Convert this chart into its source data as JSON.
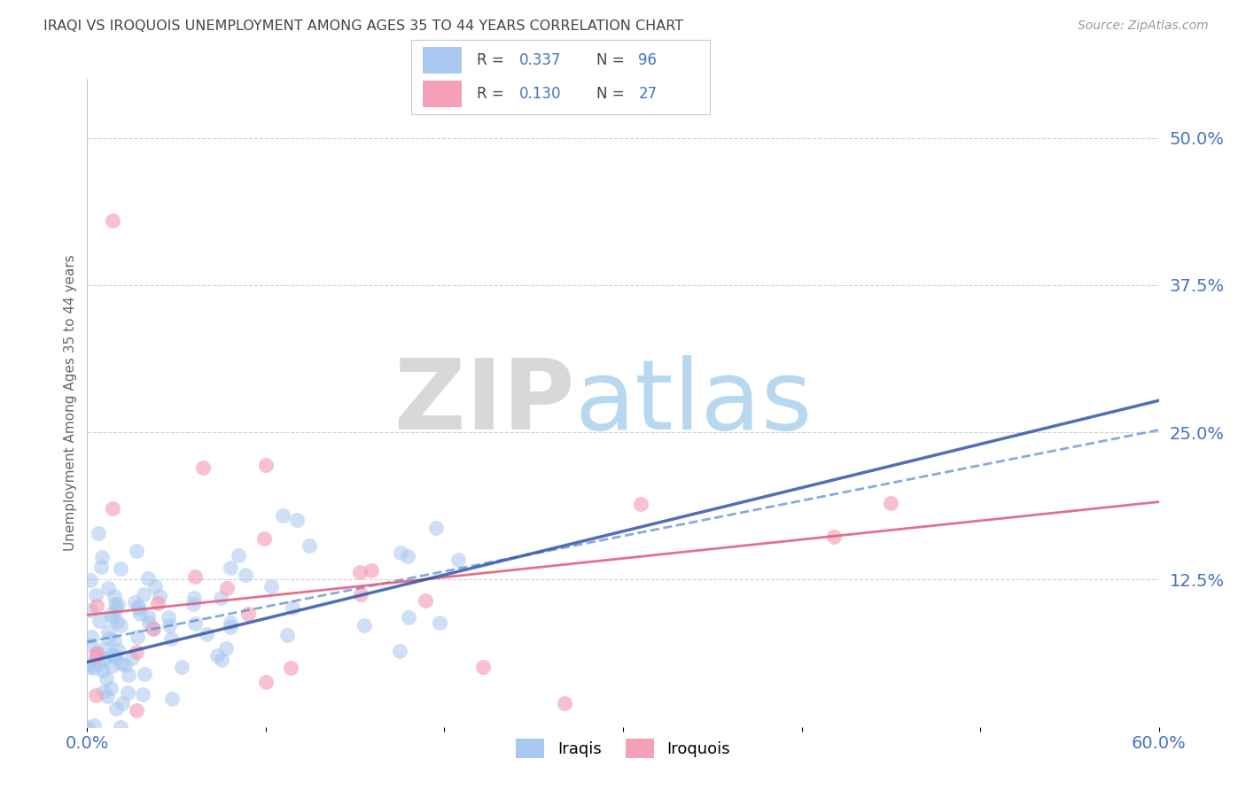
{
  "title": "IRAQI VS IROQUOIS UNEMPLOYMENT AMONG AGES 35 TO 44 YEARS CORRELATION CHART",
  "source": "Source: ZipAtlas.com",
  "ylabel": "Unemployment Among Ages 35 to 44 years",
  "xlim": [
    0.0,
    0.6
  ],
  "ylim": [
    0.0,
    0.55
  ],
  "iraqis_R": 0.337,
  "iraqis_N": 96,
  "iroquois_R": 0.13,
  "iroquois_N": 27,
  "blue_scatter_color": "#a8c8f0",
  "blue_line_color": "#5588cc",
  "pink_scatter_color": "#f4a0b8",
  "pink_line_color": "#e06080",
  "zip_color": "#d8d8d8",
  "atlas_color": "#b8d8f0",
  "background_color": "#ffffff",
  "grid_color": "#d0d0d0",
  "title_color": "#444444",
  "tick_label_color": "#4472c4",
  "legend_value_color": "#4472c4",
  "legend_label_color": "#444444",
  "iraq_trendline_intercept": 0.072,
  "iraq_trendline_slope": 0.3,
  "iro_trendline_intercept": 0.095,
  "iro_trendline_slope": 0.16
}
